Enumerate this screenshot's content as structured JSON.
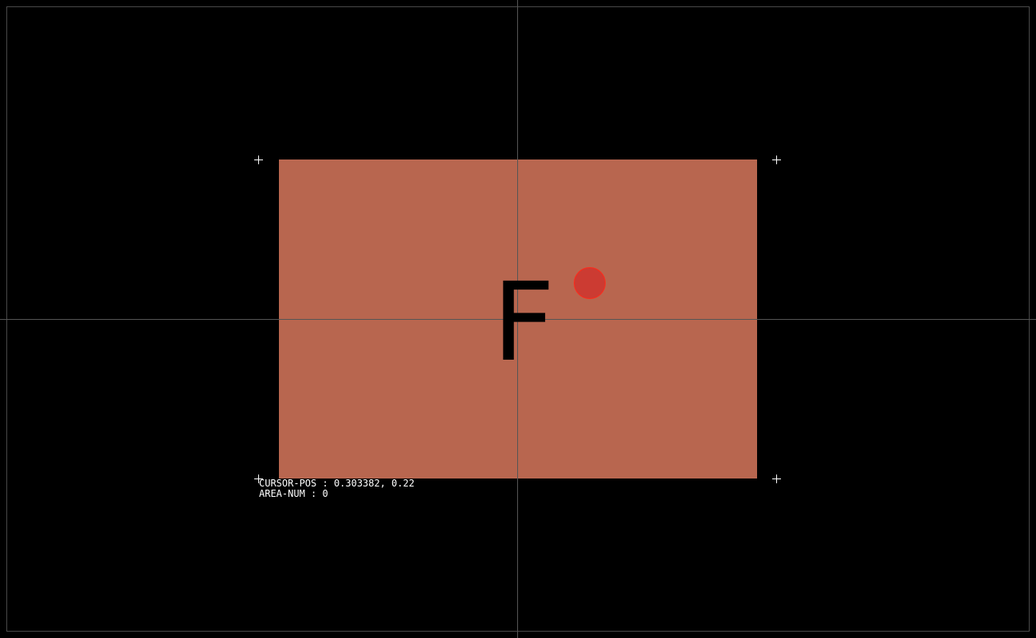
{
  "colors": {
    "background": "#000000",
    "target_fill": "#b8664f",
    "cursor_fill": "#cc3b32",
    "cursor_stroke": "#ff2a1a",
    "guide_line": "#555555",
    "hud_text": "#ffffff"
  },
  "target": {
    "letter": "F"
  },
  "hud": {
    "cursor_pos_label": "CURSOR-POS",
    "cursor_pos_value": "0.303382, 0.22",
    "area_num_label": "AREA-NUM",
    "area_num_value": "0"
  },
  "icons": {
    "corner_marker": "plus-icon",
    "cursor": "circle-cursor-icon"
  }
}
